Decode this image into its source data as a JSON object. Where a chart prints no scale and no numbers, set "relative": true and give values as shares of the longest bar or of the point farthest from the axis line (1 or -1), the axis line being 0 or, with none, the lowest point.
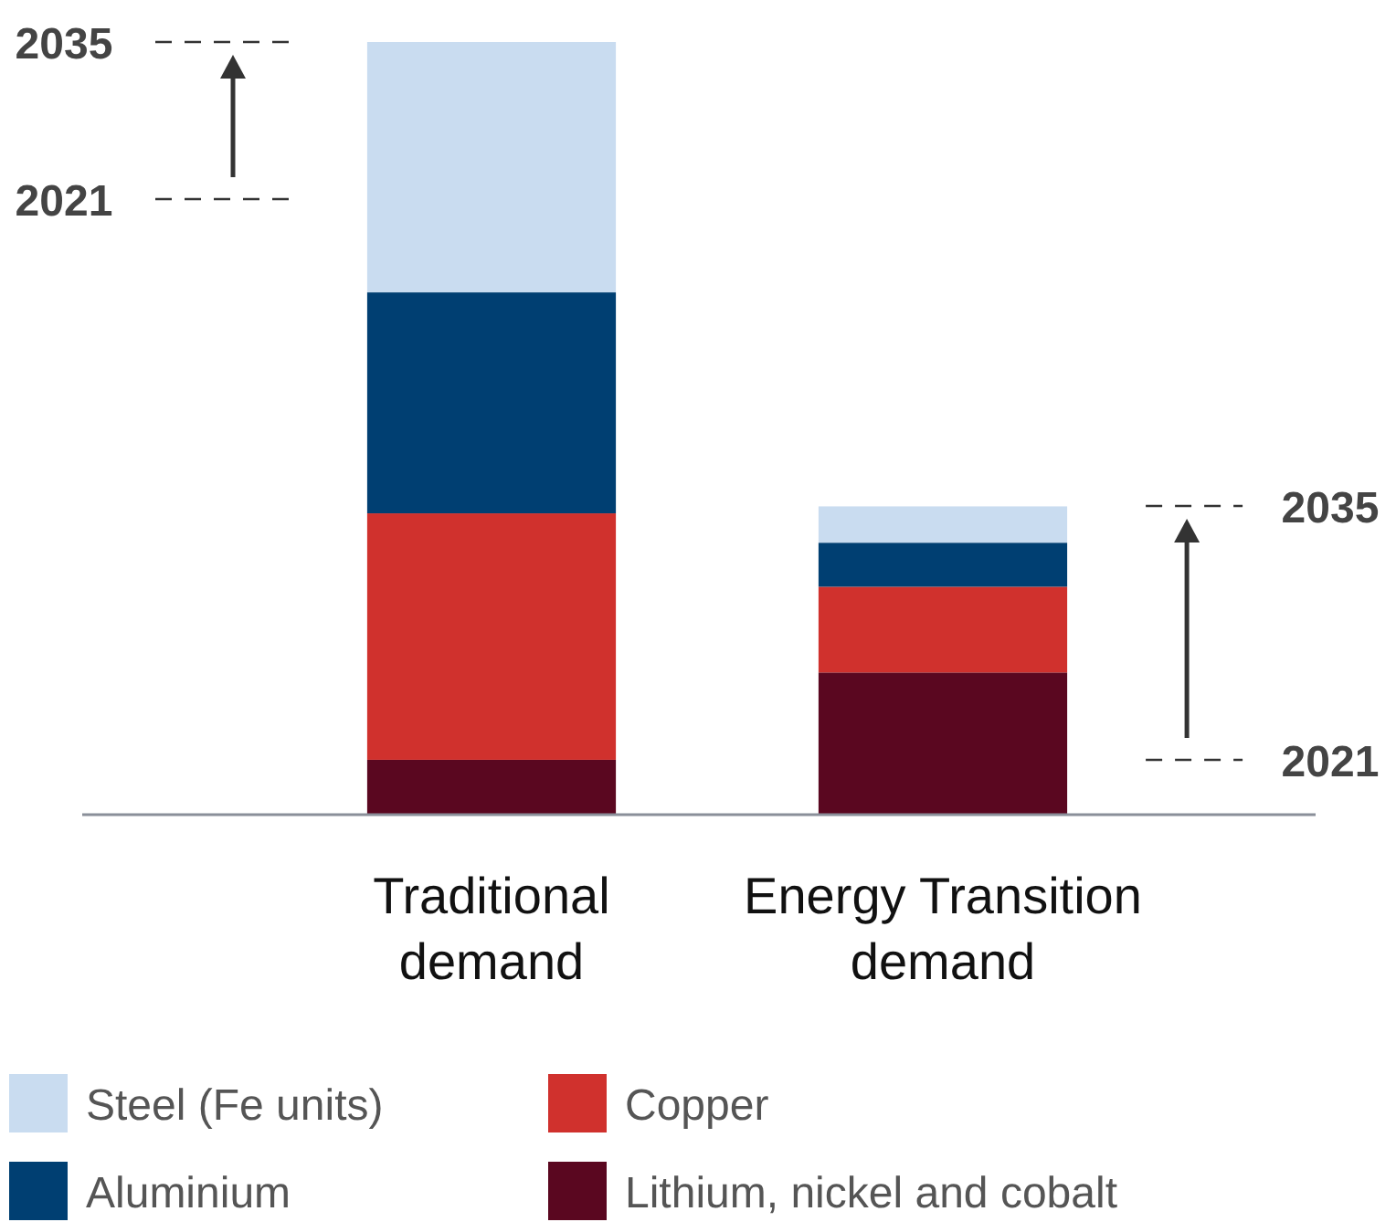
{
  "chart_data": {
    "type": "bar",
    "relative": true,
    "stacked": true,
    "legend": "bottom",
    "categories": [
      "Traditional demand",
      "Energy Transition demand"
    ],
    "series": [
      {
        "name": "Lithium, nickel and cobalt",
        "color": "#5a0720",
        "values": [
          0.071,
          0.184
        ]
      },
      {
        "name": "Copper",
        "color": "#d0312d",
        "values": [
          0.319,
          0.111
        ]
      },
      {
        "name": "Aluminium",
        "color": "#003f72",
        "values": [
          0.286,
          0.057
        ]
      },
      {
        "name": "Steel (Fe units)",
        "color": "#c9dcf0",
        "values": [
          0.324,
          0.047
        ]
      }
    ],
    "annotations": [
      "2035",
      "2021",
      "2035",
      "2021"
    ]
  }
}
